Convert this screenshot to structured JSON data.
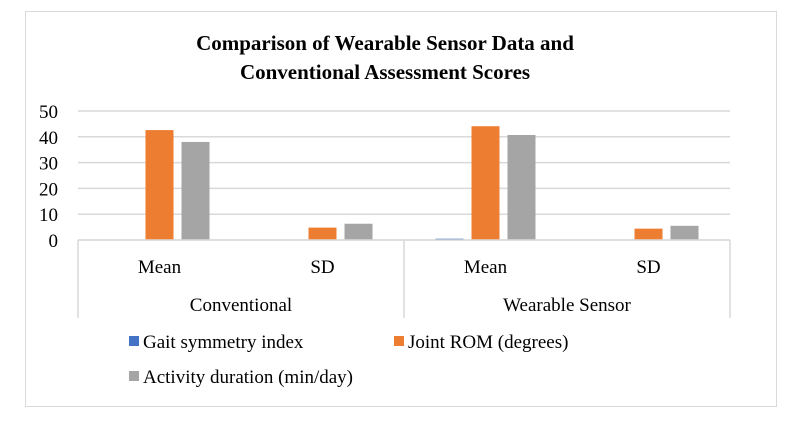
{
  "chart_data": {
    "type": "bar",
    "title_lines": [
      "Comparison of Wearable Sensor Data and",
      "Conventional Assessment Scores"
    ],
    "groups": [
      {
        "label": "Conventional",
        "categories": [
          "Mean",
          "SD"
        ]
      },
      {
        "label": "Wearable Sensor",
        "categories": [
          "Mean",
          "SD"
        ]
      }
    ],
    "series": [
      {
        "name": "Gait symmetry index",
        "color": "#4472c4",
        "values": [
          0,
          0,
          0.5,
          0
        ]
      },
      {
        "name": "Joint ROM (degrees)",
        "color": "#ed7d31",
        "values": [
          42.6,
          4.8,
          44.1,
          4.4
        ]
      },
      {
        "name": "Activity duration (min/day)",
        "color": "#a5a5a5",
        "values": [
          38.0,
          6.3,
          40.7,
          5.5
        ]
      }
    ],
    "ylim": [
      0,
      50
    ],
    "yticks": [
      "0",
      "10",
      "20",
      "30",
      "40",
      "50"
    ],
    "grid": true,
    "gridColor": "#d9d9d9",
    "legend": "bottom"
  }
}
